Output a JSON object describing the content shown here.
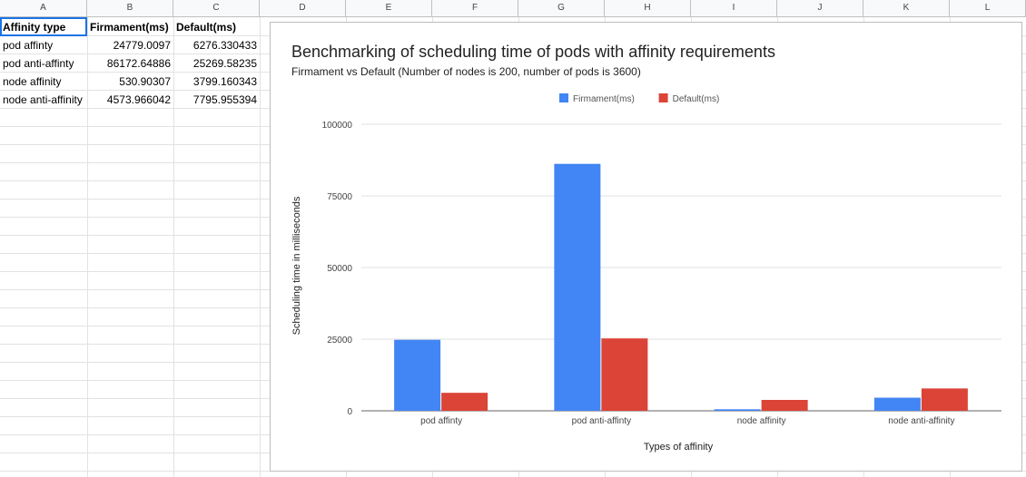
{
  "sheet": {
    "columns": [
      "A",
      "B",
      "C",
      "D",
      "E",
      "F",
      "G",
      "H",
      "I",
      "J",
      "K",
      "L"
    ],
    "header": [
      "Affinity type",
      "Firmament(ms)",
      "Default(ms)"
    ],
    "rows": [
      [
        "pod affinty",
        "24779.0097",
        "6276.330433"
      ],
      [
        "pod anti-affinty",
        "86172.64886",
        "25269.58235"
      ],
      [
        "node affinity",
        "530.90307",
        "3799.160343"
      ],
      [
        "node anti-affinity",
        "4573.966042",
        "7795.955394"
      ]
    ]
  },
  "chart_data": {
    "type": "bar",
    "title": "Benchmarking of scheduling time of pods with affinity requirements",
    "subtitle": "Firmament vs Default (Number of nodes is 200, number of pods is 3600)",
    "xlabel": "Types of affinity",
    "ylabel": "Scheduling time in milliseconds",
    "categories": [
      "pod affinty",
      "pod anti-affinty",
      "node affinity",
      "node anti-affinity"
    ],
    "series": [
      {
        "name": "Firmament(ms)",
        "color": "#4285f4",
        "values": [
          24779.0097,
          86172.64886,
          530.90307,
          4573.966042
        ]
      },
      {
        "name": "Default(ms)",
        "color": "#db4437",
        "values": [
          6276.330433,
          25269.58235,
          3799.160343,
          7795.955394
        ]
      }
    ],
    "ylim": [
      0,
      100000
    ],
    "yticks": [
      "0",
      "25000",
      "50000",
      "75000",
      "100000"
    ],
    "grid": true,
    "legend": "top"
  }
}
